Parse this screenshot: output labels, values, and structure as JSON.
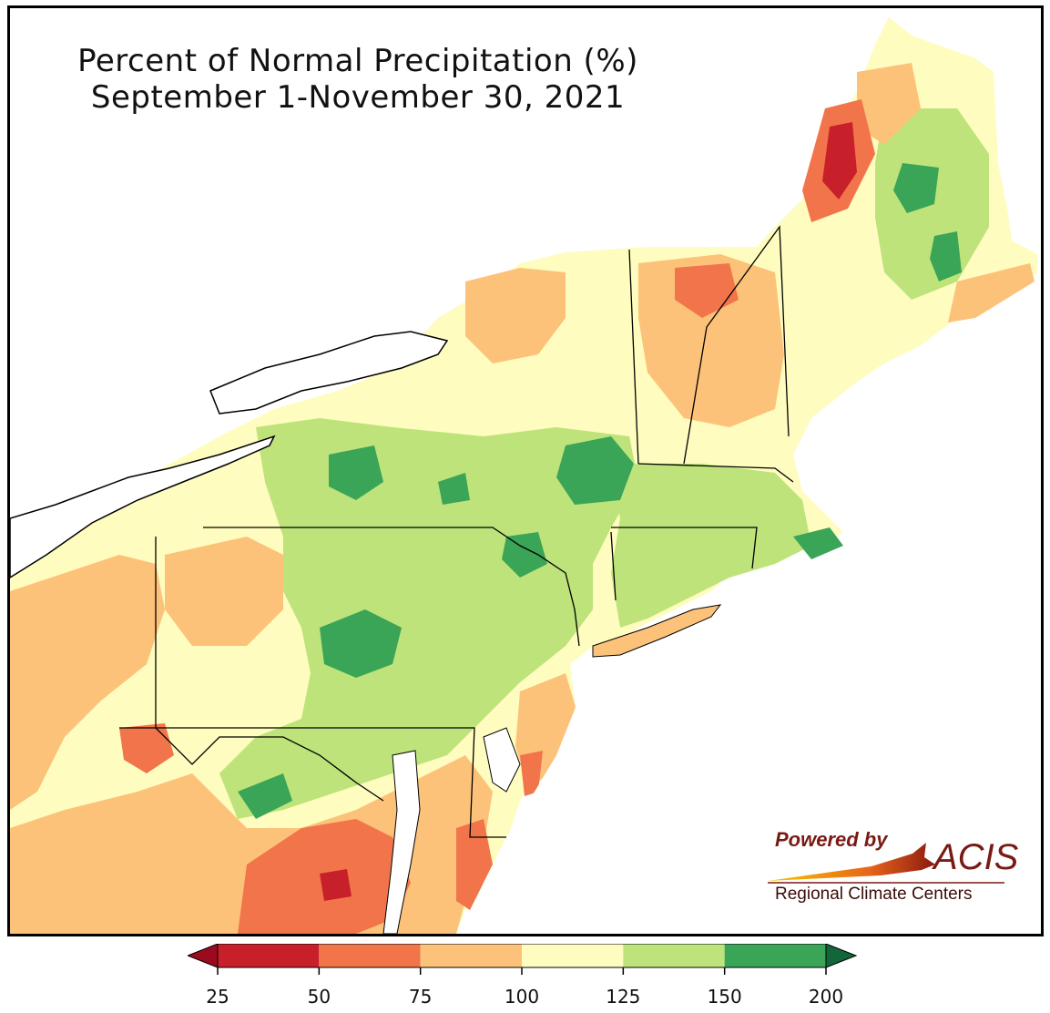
{
  "title": {
    "line1": "Percent of Normal Precipitation (%)",
    "line2": "September 1-November 30, 2021"
  },
  "logo": {
    "powered_by": "Powered by",
    "acis": "ACIS",
    "subtitle": "Regional Climate Centers"
  },
  "legend": {
    "ticks": [
      "25",
      "50",
      "75",
      "100",
      "125",
      "150",
      "200"
    ],
    "bins": [
      {
        "from": 25,
        "to": 50,
        "color": "#c8202a"
      },
      {
        "from": 50,
        "to": 75,
        "color": "#f2744a"
      },
      {
        "from": 75,
        "to": 100,
        "color": "#fdc27a"
      },
      {
        "from": 100,
        "to": 125,
        "color": "#fefcbe"
      },
      {
        "from": 125,
        "to": 150,
        "color": "#bde37a"
      },
      {
        "from": 150,
        "to": 200,
        "color": "#3aa457"
      }
    ],
    "under_color": "#9b0a1e",
    "over_color": "#13663a"
  },
  "colors": {
    "water": "#ffffff",
    "state_border": "#000000",
    "county_border": "#9a9a9a"
  }
}
